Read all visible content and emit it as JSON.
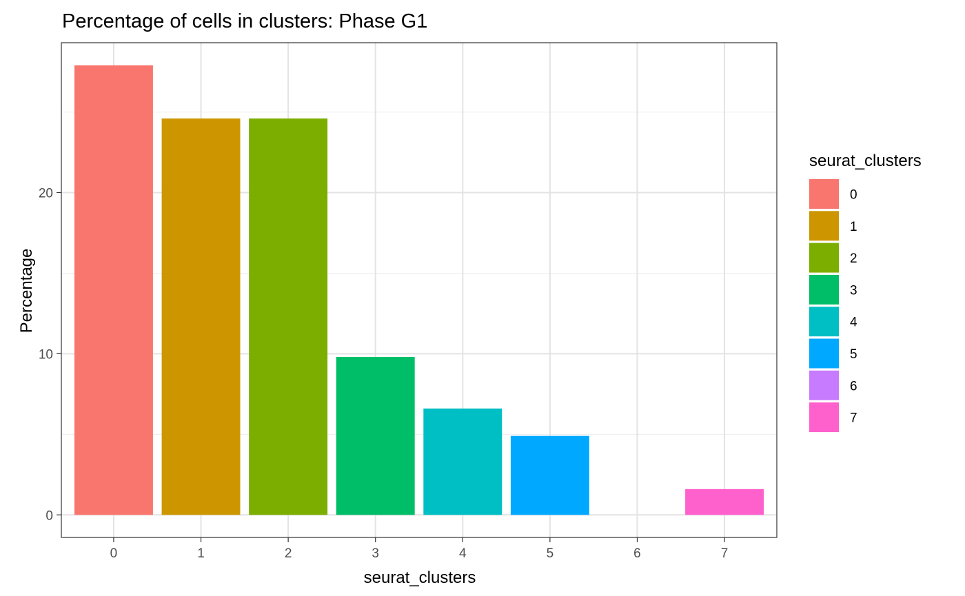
{
  "chart_data": {
    "type": "bar",
    "title": "Percentage of cells in clusters: Phase G1",
    "xlabel": "seurat_clusters",
    "ylabel": "Percentage",
    "categories": [
      "0",
      "1",
      "2",
      "3",
      "4",
      "5",
      "6",
      "7"
    ],
    "values": [
      27.9,
      24.6,
      24.6,
      9.8,
      6.6,
      4.9,
      0.0,
      1.6
    ],
    "colors": [
      "#F8766D",
      "#CD9600",
      "#7CAE00",
      "#00BE67",
      "#00BFC4",
      "#00A9FF",
      "#C77CFF",
      "#FF61CC"
    ],
    "ylim": [
      -1.4,
      29.3
    ],
    "yticks": [
      "0",
      "10",
      "20"
    ],
    "grid": true,
    "legend": {
      "title": "seurat_clusters",
      "position": "right",
      "entries": [
        "0",
        "1",
        "2",
        "3",
        "4",
        "5",
        "6",
        "7"
      ]
    }
  }
}
